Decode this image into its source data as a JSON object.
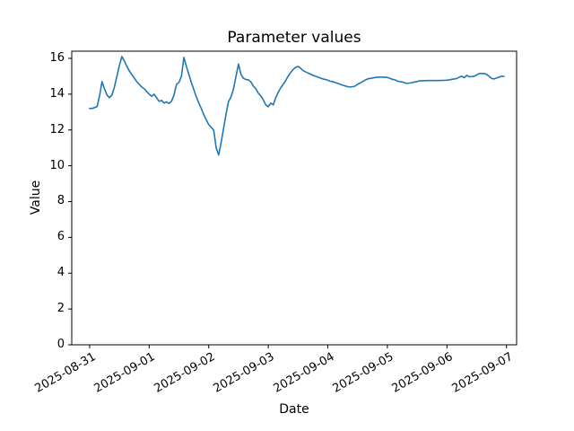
{
  "chart_data": {
    "type": "line",
    "title": "Parameter values",
    "xlabel": "Date",
    "ylabel": "Value",
    "line_color": "#1f77b4",
    "axis_color": "#000000",
    "background": "#ffffff",
    "grid": false,
    "legend": false,
    "x_tick_labels": [
      "2025-08-31",
      "2025-09-01",
      "2025-09-02",
      "2025-09-03",
      "2025-09-04",
      "2025-09-05",
      "2025-09-06",
      "2025-09-07"
    ],
    "x_tick_days": [
      0,
      1,
      2,
      3,
      4,
      5,
      6,
      7
    ],
    "y_ticks": [
      0,
      2,
      4,
      6,
      8,
      10,
      12,
      14,
      16
    ],
    "xlim_days": [
      -0.3,
      7.17
    ],
    "ylim": [
      0,
      16.4
    ],
    "x_start": "2025-08-31 00:00",
    "x_step_hours": 1,
    "values": [
      13.2,
      13.2,
      13.25,
      13.3,
      13.9,
      14.7,
      14.3,
      13.95,
      13.8,
      13.95,
      14.4,
      15.0,
      15.6,
      16.1,
      15.85,
      15.55,
      15.3,
      15.1,
      14.9,
      14.7,
      14.55,
      14.4,
      14.3,
      14.15,
      14.0,
      13.88,
      14.0,
      13.8,
      13.6,
      13.65,
      13.5,
      13.57,
      13.48,
      13.6,
      13.95,
      14.55,
      14.65,
      15.0,
      16.05,
      15.55,
      15.1,
      14.65,
      14.25,
      13.85,
      13.5,
      13.2,
      12.85,
      12.57,
      12.3,
      12.15,
      12.0,
      11.0,
      10.6,
      11.3,
      12.1,
      12.9,
      13.6,
      13.85,
      14.3,
      15.0,
      15.68,
      15.1,
      14.88,
      14.82,
      14.8,
      14.68,
      14.45,
      14.3,
      14.05,
      13.9,
      13.68,
      13.4,
      13.3,
      13.5,
      13.4,
      13.8,
      14.1,
      14.35,
      14.55,
      14.75,
      15.0,
      15.2,
      15.38,
      15.5,
      15.55,
      15.45,
      15.32,
      15.25,
      15.18,
      15.12,
      15.05,
      15.0,
      14.95,
      14.9,
      14.85,
      14.82,
      14.78,
      14.72,
      14.7,
      14.65,
      14.6,
      14.55,
      14.5,
      14.46,
      14.42,
      14.4,
      14.42,
      14.45,
      14.55,
      14.62,
      14.7,
      14.78,
      14.85,
      14.88,
      14.9,
      14.93,
      14.95,
      14.95,
      14.95,
      14.95,
      14.93,
      14.88,
      14.83,
      14.8,
      14.73,
      14.7,
      14.68,
      14.63,
      14.6,
      14.62,
      14.65,
      14.68,
      14.7,
      14.75,
      14.75,
      14.75,
      14.76,
      14.76,
      14.76,
      14.76,
      14.76,
      14.76,
      14.77,
      14.77,
      14.78,
      14.8,
      14.83,
      14.85,
      14.88,
      14.95,
      15.0,
      14.92,
      15.05,
      14.97,
      14.98,
      15.0,
      15.08,
      15.15,
      15.15,
      15.15,
      15.1,
      15.0,
      14.88,
      14.85,
      14.9,
      14.95,
      15.0,
      15.0
    ]
  }
}
